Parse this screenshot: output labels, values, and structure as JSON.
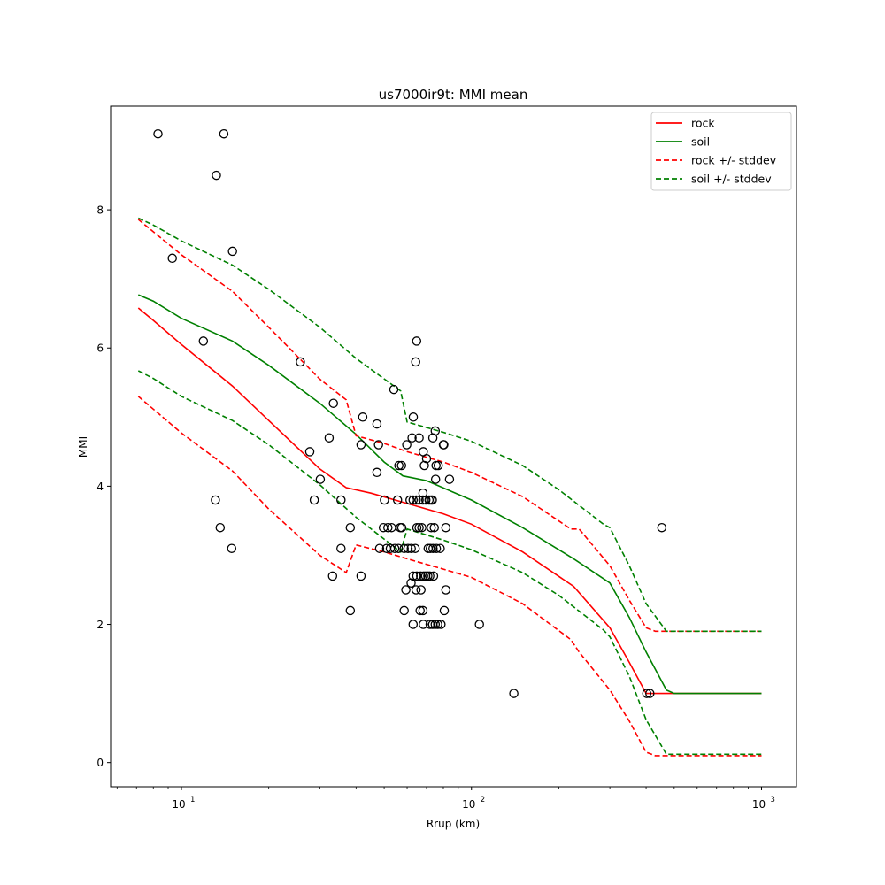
{
  "chart_data": {
    "type": "line",
    "title": "us7000ir9t: MMI mean",
    "xlabel": "Rrup (km)",
    "ylabel": "MMI",
    "xscale": "log",
    "xlim": [
      5.7,
      1320
    ],
    "ylim": [
      -0.35,
      9.5
    ],
    "x_ticks": [
      {
        "value": 10,
        "base": "10",
        "exp": "1"
      },
      {
        "value": 100,
        "base": "10",
        "exp": "2"
      },
      {
        "value": 1000,
        "base": "10",
        "exp": "3"
      }
    ],
    "y_ticks": [
      {
        "value": 0,
        "label": "0"
      },
      {
        "value": 2,
        "label": "2"
      },
      {
        "value": 4,
        "label": "4"
      },
      {
        "value": 6,
        "label": "6"
      },
      {
        "value": 8,
        "label": "8"
      }
    ],
    "legend_position": "top-right",
    "colors": {
      "rock": "#ff0000",
      "soil": "#008000",
      "points": "#000000"
    },
    "series": [
      {
        "name": "rock",
        "style": "solid",
        "color": "#ff0000",
        "x": [
          7.1,
          8,
          10,
          15,
          20,
          30,
          37,
          45,
          60,
          80,
          100,
          150,
          225,
          300,
          350,
          400,
          500,
          700,
          1000
        ],
        "y": [
          6.58,
          6.4,
          6.05,
          5.45,
          4.95,
          4.25,
          3.98,
          3.9,
          3.75,
          3.6,
          3.45,
          3.05,
          2.55,
          1.95,
          1.45,
          1.0,
          1.0,
          1.0,
          1.0
        ]
      },
      {
        "name": "soil",
        "style": "solid",
        "color": "#008000",
        "x": [
          7.1,
          8,
          10,
          15,
          20,
          30,
          40,
          50,
          58,
          70,
          100,
          150,
          225,
          300,
          350,
          400,
          470,
          500,
          700,
          1000
        ],
        "y": [
          6.77,
          6.68,
          6.43,
          6.1,
          5.75,
          5.2,
          4.75,
          4.35,
          4.15,
          4.08,
          3.8,
          3.4,
          2.95,
          2.6,
          2.1,
          1.6,
          1.05,
          1.0,
          1.0,
          1.0
        ]
      },
      {
        "name": "rock +/- stddev",
        "style": "dashed",
        "color": "#ff0000",
        "x": [
          7.1,
          10,
          15,
          20,
          30,
          37,
          40,
          50,
          60,
          80,
          100,
          150,
          220,
          235,
          300,
          350,
          400,
          430,
          500,
          700,
          1000
        ],
        "y": [
          7.86,
          7.35,
          6.82,
          6.3,
          5.55,
          5.25,
          4.73,
          4.62,
          4.5,
          4.35,
          4.2,
          3.85,
          3.38,
          3.38,
          2.85,
          2.35,
          1.95,
          1.9,
          1.9,
          1.9,
          1.9
        ]
      },
      {
        "name": "rock +/- stddev lower",
        "style": "dashed",
        "color": "#ff0000",
        "x": [
          7.1,
          10,
          15,
          20,
          30,
          37,
          40,
          50,
          60,
          80,
          100,
          150,
          220,
          235,
          300,
          350,
          400,
          430,
          500,
          700,
          1000
        ],
        "y": [
          5.3,
          4.77,
          4.22,
          3.67,
          3.0,
          2.75,
          3.15,
          3.05,
          2.95,
          2.8,
          2.68,
          2.3,
          1.78,
          1.6,
          1.05,
          0.6,
          0.15,
          0.1,
          0.1,
          0.1,
          0.1
        ]
      },
      {
        "name": "soil +/- stddev",
        "style": "dashed",
        "color": "#008000",
        "x": [
          7.1,
          8,
          10,
          15,
          20,
          30,
          40,
          57,
          60,
          80,
          100,
          150,
          200,
          285,
          300,
          350,
          400,
          470,
          500,
          700,
          1000
        ],
        "y": [
          7.88,
          7.78,
          7.55,
          7.2,
          6.85,
          6.3,
          5.85,
          5.38,
          4.93,
          4.78,
          4.65,
          4.3,
          3.95,
          3.45,
          3.4,
          2.85,
          2.3,
          1.9,
          1.9,
          1.9,
          1.9
        ]
      },
      {
        "name": "soil +/- stddev lower",
        "style": "dashed",
        "color": "#008000",
        "x": [
          7.1,
          8,
          10,
          15,
          20,
          30,
          40,
          57,
          60,
          80,
          100,
          150,
          200,
          285,
          300,
          350,
          400,
          470,
          500,
          700,
          1000
        ],
        "y": [
          5.67,
          5.56,
          5.3,
          4.95,
          4.6,
          4.02,
          3.55,
          3.05,
          3.38,
          3.22,
          3.08,
          2.75,
          2.42,
          1.92,
          1.82,
          1.25,
          0.62,
          0.12,
          0.12,
          0.12,
          0.12
        ]
      }
    ],
    "legend": [
      {
        "label": "rock",
        "style": "solid",
        "color": "#ff0000"
      },
      {
        "label": "soil",
        "style": "solid",
        "color": "#008000"
      },
      {
        "label": "rock +/- stddev",
        "style": "dashed",
        "color": "#ff0000"
      },
      {
        "label": "soil +/- stddev",
        "style": "dashed",
        "color": "#008000"
      }
    ],
    "scatter": [
      [
        8.3,
        9.1
      ],
      [
        14.0,
        9.1
      ],
      [
        13.2,
        8.5
      ],
      [
        9.3,
        7.3
      ],
      [
        15.0,
        7.4
      ],
      [
        11.9,
        6.1
      ],
      [
        25.7,
        5.8
      ],
      [
        33.4,
        5.2
      ],
      [
        27.7,
        4.5
      ],
      [
        32.3,
        4.7
      ],
      [
        30.1,
        4.1
      ],
      [
        28.7,
        3.8
      ],
      [
        13.1,
        3.8
      ],
      [
        13.6,
        3.4
      ],
      [
        14.9,
        3.1
      ],
      [
        35.5,
        3.8
      ],
      [
        35.5,
        3.1
      ],
      [
        38.2,
        3.4
      ],
      [
        33.2,
        2.7
      ],
      [
        41.6,
        2.7
      ],
      [
        38.2,
        2.2
      ],
      [
        41.6,
        4.6
      ],
      [
        42.2,
        5.0
      ],
      [
        47.2,
        4.9
      ],
      [
        47.8,
        4.6
      ],
      [
        47.2,
        4.2
      ],
      [
        54.0,
        5.4
      ],
      [
        64.7,
        6.1
      ],
      [
        64.2,
        5.8
      ],
      [
        63.0,
        5.0
      ],
      [
        62.4,
        4.7
      ],
      [
        59.8,
        4.6
      ],
      [
        56.2,
        4.3
      ],
      [
        57.4,
        4.3
      ],
      [
        66.0,
        4.7
      ],
      [
        70.0,
        4.4
      ],
      [
        68.2,
        4.5
      ],
      [
        68.8,
        4.3
      ],
      [
        73.6,
        4.7
      ],
      [
        75.0,
        4.8
      ],
      [
        75.5,
        4.3
      ],
      [
        76.8,
        4.3
      ],
      [
        80.3,
        4.6
      ],
      [
        80.0,
        4.6
      ],
      [
        84.0,
        4.1
      ],
      [
        75.2,
        4.1
      ],
      [
        68.0,
        3.9
      ],
      [
        50.1,
        3.8
      ],
      [
        55.6,
        3.8
      ],
      [
        61.4,
        3.8
      ],
      [
        62.9,
        3.8
      ],
      [
        64.5,
        3.8
      ],
      [
        66.0,
        3.8
      ],
      [
        68.0,
        3.8
      ],
      [
        69.6,
        3.8
      ],
      [
        71.4,
        3.8
      ],
      [
        72.5,
        3.8
      ],
      [
        73.3,
        3.8
      ],
      [
        49.7,
        3.4
      ],
      [
        51.5,
        3.4
      ],
      [
        53.0,
        3.4
      ],
      [
        56.8,
        3.4
      ],
      [
        57.5,
        3.4
      ],
      [
        64.8,
        3.4
      ],
      [
        66.0,
        3.4
      ],
      [
        67.4,
        3.4
      ],
      [
        72.6,
        3.4
      ],
      [
        74.4,
        3.4
      ],
      [
        81.6,
        3.4
      ],
      [
        48.2,
        3.1
      ],
      [
        51.0,
        3.1
      ],
      [
        52.5,
        3.1
      ],
      [
        54.4,
        3.1
      ],
      [
        56.0,
        3.1
      ],
      [
        58.6,
        3.1
      ],
      [
        60.4,
        3.1
      ],
      [
        62.0,
        3.1
      ],
      [
        64.0,
        3.1
      ],
      [
        70.9,
        3.1
      ],
      [
        72.1,
        3.1
      ],
      [
        73.7,
        3.1
      ],
      [
        75.7,
        3.1
      ],
      [
        78.0,
        3.1
      ],
      [
        62.9,
        2.7
      ],
      [
        64.8,
        2.7
      ],
      [
        66.8,
        2.7
      ],
      [
        68.4,
        2.7
      ],
      [
        69.5,
        2.7
      ],
      [
        70.7,
        2.7
      ],
      [
        71.8,
        2.7
      ],
      [
        74.0,
        2.7
      ],
      [
        61.9,
        2.6
      ],
      [
        59.4,
        2.5
      ],
      [
        64.4,
        2.5
      ],
      [
        67.0,
        2.5
      ],
      [
        81.6,
        2.5
      ],
      [
        58.6,
        2.2
      ],
      [
        66.5,
        2.2
      ],
      [
        68.0,
        2.2
      ],
      [
        80.6,
        2.2
      ],
      [
        62.9,
        2.0
      ],
      [
        68.2,
        2.0
      ],
      [
        72.0,
        2.0
      ],
      [
        73.5,
        2.0
      ],
      [
        75.0,
        2.0
      ],
      [
        76.5,
        2.0
      ],
      [
        78.5,
        2.0
      ],
      [
        106.5,
        2.0
      ],
      [
        140.0,
        1.0
      ],
      [
        402.0,
        1.0
      ],
      [
        412.0,
        1.0
      ],
      [
        453.0,
        3.4
      ]
    ]
  }
}
